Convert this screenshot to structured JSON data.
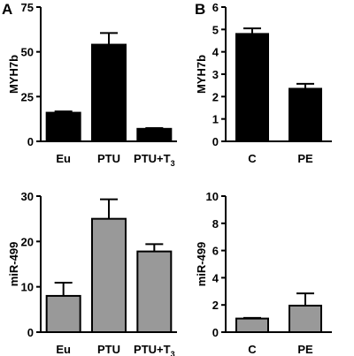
{
  "panel_letters": [
    "A",
    "B"
  ],
  "chart_data": [
    {
      "type": "bar",
      "ylabel": "MYH7b",
      "categories": [
        "Eu",
        "PTU",
        "PTU+T3"
      ],
      "values": [
        16,
        54,
        7
      ],
      "errors": [
        0.7,
        6.5,
        0.4
      ],
      "ylim": [
        0,
        75
      ],
      "yticks": [
        0,
        25,
        50,
        75
      ],
      "bar_color": "#000000"
    },
    {
      "type": "bar",
      "ylabel": "MYH7b",
      "categories": [
        "C",
        "PE"
      ],
      "values": [
        4.8,
        2.35
      ],
      "errors": [
        0.25,
        0.22
      ],
      "ylim": [
        0,
        6
      ],
      "yticks": [
        0,
        1,
        2,
        3,
        4,
        5,
        6
      ],
      "bar_color": "#000000"
    },
    {
      "type": "bar",
      "ylabel": "miR-499",
      "categories": [
        "Eu",
        "PTU",
        "PTU+T3"
      ],
      "values": [
        8,
        25,
        17.8
      ],
      "errors": [
        2.9,
        4.3,
        1.6
      ],
      "ylim": [
        0,
        30
      ],
      "yticks": [
        0,
        10,
        20,
        30
      ],
      "bar_color": "#999999"
    },
    {
      "type": "bar",
      "ylabel": "miR-499",
      "categories": [
        "C",
        "PE"
      ],
      "values": [
        1,
        1.95
      ],
      "errors": [
        0.05,
        0.9
      ],
      "ylim": [
        0,
        10
      ],
      "yticks": [
        0,
        2,
        4,
        6,
        8,
        10
      ],
      "bar_color": "#999999"
    }
  ]
}
